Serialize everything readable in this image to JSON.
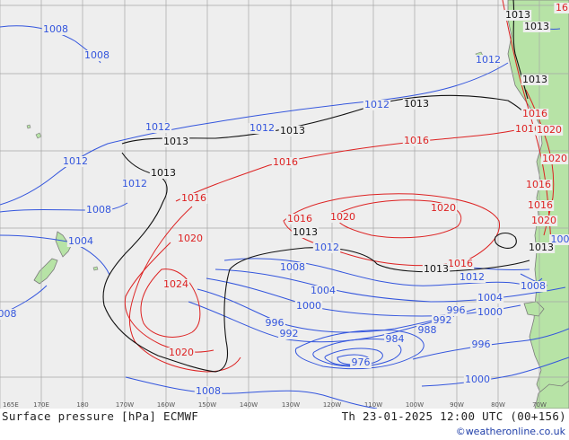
{
  "map": {
    "colors": {
      "ocean": "#eeeeee",
      "land": "#b7e3a6",
      "grid": "#a6a6a6",
      "low": "#3355dd",
      "high": "#dd2222",
      "ref": "#111111",
      "coast": "#7a7a7a"
    },
    "lon_ticks": [
      {
        "id": "lon-165e",
        "text": "165E"
      },
      {
        "id": "lon-170e",
        "text": "170E"
      },
      {
        "id": "lon-180",
        "text": "180"
      },
      {
        "id": "lon-170w",
        "text": "170W"
      },
      {
        "id": "lon-160w",
        "text": "160W"
      },
      {
        "id": "lon-150w",
        "text": "150W"
      },
      {
        "id": "lon-140w",
        "text": "140W"
      },
      {
        "id": "lon-130w",
        "text": "130W"
      },
      {
        "id": "lon-120w",
        "text": "120W"
      },
      {
        "id": "lon-110w",
        "text": "110W"
      },
      {
        "id": "lon-100w",
        "text": "100W"
      },
      {
        "id": "lon-90w",
        "text": "90W"
      },
      {
        "id": "lon-80w",
        "text": "80W"
      },
      {
        "id": "lon-70w",
        "text": "70W"
      }
    ],
    "isobar_labels": [
      {
        "id": "l01",
        "text": "1008",
        "kind": "low"
      },
      {
        "id": "l02",
        "text": "1008",
        "kind": "low"
      },
      {
        "id": "l03",
        "text": "1012",
        "kind": "low"
      },
      {
        "id": "l04",
        "text": "1012",
        "kind": "low"
      },
      {
        "id": "l05",
        "text": "1012",
        "kind": "low"
      },
      {
        "id": "l06",
        "text": "1012",
        "kind": "low"
      },
      {
        "id": "l07",
        "text": "1012",
        "kind": "low"
      },
      {
        "id": "l08",
        "text": "1008",
        "kind": "low"
      },
      {
        "id": "l09",
        "text": "1004",
        "kind": "low"
      },
      {
        "id": "l10",
        "text": "1012",
        "kind": "low"
      },
      {
        "id": "l11",
        "text": "1008",
        "kind": "low"
      },
      {
        "id": "l12",
        "text": "1004",
        "kind": "low"
      },
      {
        "id": "l13",
        "text": "1000",
        "kind": "low"
      },
      {
        "id": "l14",
        "text": "996",
        "kind": "low"
      },
      {
        "id": "l15",
        "text": "992",
        "kind": "low"
      },
      {
        "id": "l16",
        "text": "984",
        "kind": "low"
      },
      {
        "id": "l17",
        "text": "976",
        "kind": "low"
      },
      {
        "id": "l18",
        "text": "988",
        "kind": "low"
      },
      {
        "id": "l19",
        "text": "992",
        "kind": "low"
      },
      {
        "id": "l20",
        "text": "996",
        "kind": "low"
      },
      {
        "id": "l21",
        "text": "1012",
        "kind": "low"
      },
      {
        "id": "l22",
        "text": "1004",
        "kind": "low"
      },
      {
        "id": "l23",
        "text": "1000",
        "kind": "low"
      },
      {
        "id": "l24",
        "text": "996",
        "kind": "low"
      },
      {
        "id": "l25",
        "text": "1000",
        "kind": "low"
      },
      {
        "id": "l26",
        "text": "1008",
        "kind": "low"
      },
      {
        "id": "l27",
        "text": "1008",
        "kind": "low"
      },
      {
        "id": "l28",
        "text": "008",
        "kind": "low"
      },
      {
        "id": "l29",
        "text": "1012",
        "kind": "low"
      },
      {
        "id": "l30",
        "text": "100",
        "kind": "low"
      },
      {
        "id": "l31",
        "text": "1016",
        "kind": "high"
      },
      {
        "id": "l32",
        "text": "1016",
        "kind": "high"
      },
      {
        "id": "l33",
        "text": "1016",
        "kind": "high"
      },
      {
        "id": "l34",
        "text": "1020",
        "kind": "high"
      },
      {
        "id": "l35",
        "text": "1024",
        "kind": "high"
      },
      {
        "id": "l36",
        "text": "1020",
        "kind": "high"
      },
      {
        "id": "l37",
        "text": "1016",
        "kind": "high"
      },
      {
        "id": "l38",
        "text": "1020",
        "kind": "high"
      },
      {
        "id": "l39",
        "text": "1020",
        "kind": "high"
      },
      {
        "id": "l40",
        "text": "1016",
        "kind": "high"
      },
      {
        "id": "l41",
        "text": "1016",
        "kind": "high"
      },
      {
        "id": "l42",
        "text": "1016",
        "kind": "high"
      },
      {
        "id": "l43",
        "text": "1016",
        "kind": "high"
      },
      {
        "id": "l44",
        "text": "1020",
        "kind": "high"
      },
      {
        "id": "l45",
        "text": "1020",
        "kind": "high"
      },
      {
        "id": "l46",
        "text": "1016",
        "kind": "high"
      },
      {
        "id": "l47",
        "text": "1020",
        "kind": "high"
      },
      {
        "id": "l48",
        "text": "16",
        "kind": "high"
      },
      {
        "id": "l49",
        "text": "1013",
        "kind": "ref"
      },
      {
        "id": "l50",
        "text": "1013",
        "kind": "ref"
      },
      {
        "id": "l51",
        "text": "1013",
        "kind": "ref"
      },
      {
        "id": "l52",
        "text": "1013",
        "kind": "ref"
      },
      {
        "id": "l53",
        "text": "1013",
        "kind": "ref"
      },
      {
        "id": "l54",
        "text": "1013",
        "kind": "ref"
      },
      {
        "id": "l55",
        "text": "1013",
        "kind": "ref"
      },
      {
        "id": "l56",
        "text": "1013",
        "kind": "ref"
      },
      {
        "id": "l57",
        "text": "1013",
        "kind": "ref"
      },
      {
        "id": "l58",
        "text": "1013",
        "kind": "ref"
      }
    ]
  },
  "footer": {
    "title": "Surface pressure [hPa] ECMWF",
    "valid": "Th 23-01-2025 12:00 UTC (00+156)",
    "credit": "©weatheronline.co.uk"
  }
}
